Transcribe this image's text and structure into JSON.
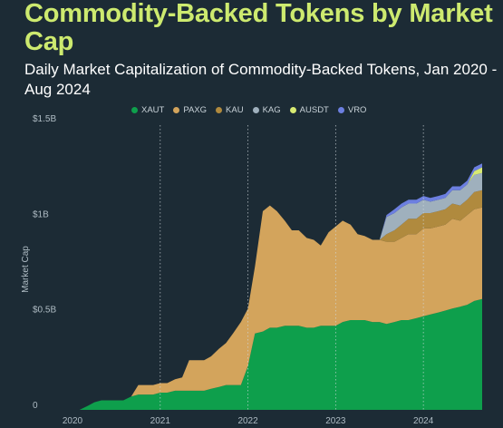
{
  "title": "Commodity-Backed Tokens by Market Cap",
  "subtitle": "Daily Market Capitalization of Commodity-Backed Tokens, Jan 2020 - Aug 2024",
  "chart_data": {
    "type": "area",
    "stacked": true,
    "title": "Commodity-Backed Tokens by Market Cap",
    "subtitle": "Daily Market Capitalization of Commodity-Backed Tokens, Jan 2020 - Aug 2024",
    "xlabel": "",
    "ylabel": "Market Cap",
    "x_ticks": [
      "2020",
      "2021",
      "2022",
      "2023",
      "2024"
    ],
    "y_ticks": [
      "0",
      "$0.5B",
      "$1B",
      "$1.5B"
    ],
    "ylim": [
      0,
      1.5
    ],
    "y_unit": "billion USD",
    "xlim": [
      2020.0,
      2024.67
    ],
    "grid": "vertical year lines (dotted)",
    "legend_position": "top",
    "colors": {
      "XAUT": "#0e9f4c",
      "PAXG": "#d3a45c",
      "KAU": "#b08a3e",
      "KAG": "#9fb0bd",
      "AUSDT": "#d8ea72",
      "VRO": "#6c7fe0"
    },
    "x": [
      2020.0,
      2020.08,
      2020.17,
      2020.25,
      2020.33,
      2020.42,
      2020.5,
      2020.58,
      2020.67,
      2020.75,
      2020.83,
      2020.92,
      2021.0,
      2021.08,
      2021.17,
      2021.25,
      2021.33,
      2021.42,
      2021.5,
      2021.58,
      2021.67,
      2021.75,
      2021.83,
      2021.92,
      2022.0,
      2022.08,
      2022.17,
      2022.25,
      2022.33,
      2022.42,
      2022.5,
      2022.58,
      2022.67,
      2022.75,
      2022.83,
      2022.92,
      2023.0,
      2023.08,
      2023.17,
      2023.25,
      2023.33,
      2023.42,
      2023.5,
      2023.58,
      2023.67,
      2023.75,
      2023.83,
      2023.92,
      2024.0,
      2024.08,
      2024.17,
      2024.25,
      2024.33,
      2024.42,
      2024.5,
      2024.58,
      2024.67
    ],
    "series": [
      {
        "name": "XAUT",
        "values": [
          0.0,
          0.0,
          0.02,
          0.04,
          0.05,
          0.05,
          0.05,
          0.05,
          0.07,
          0.08,
          0.08,
          0.08,
          0.09,
          0.09,
          0.1,
          0.1,
          0.1,
          0.1,
          0.1,
          0.11,
          0.12,
          0.13,
          0.13,
          0.13,
          0.23,
          0.4,
          0.41,
          0.43,
          0.43,
          0.44,
          0.44,
          0.44,
          0.43,
          0.43,
          0.44,
          0.44,
          0.44,
          0.46,
          0.47,
          0.47,
          0.47,
          0.46,
          0.46,
          0.45,
          0.46,
          0.47,
          0.47,
          0.48,
          0.49,
          0.5,
          0.51,
          0.52,
          0.53,
          0.54,
          0.55,
          0.57,
          0.58
        ]
      },
      {
        "name": "PAXG",
        "values": [
          0.0,
          0.0,
          0.0,
          0.0,
          0.0,
          0.0,
          0.0,
          0.0,
          0.0,
          0.05,
          0.05,
          0.05,
          0.05,
          0.05,
          0.06,
          0.07,
          0.16,
          0.16,
          0.16,
          0.17,
          0.2,
          0.22,
          0.27,
          0.33,
          0.3,
          0.35,
          0.63,
          0.64,
          0.61,
          0.55,
          0.5,
          0.5,
          0.47,
          0.46,
          0.42,
          0.49,
          0.52,
          0.53,
          0.5,
          0.45,
          0.44,
          0.43,
          0.43,
          0.43,
          0.42,
          0.43,
          0.45,
          0.44,
          0.46,
          0.45,
          0.45,
          0.45,
          0.47,
          0.45,
          0.47,
          0.48,
          0.48
        ]
      },
      {
        "name": "KAU",
        "values": [
          0.0,
          0.0,
          0.0,
          0.0,
          0.0,
          0.0,
          0.0,
          0.0,
          0.0,
          0.0,
          0.0,
          0.0,
          0.0,
          0.0,
          0.0,
          0.0,
          0.0,
          0.0,
          0.0,
          0.0,
          0.0,
          0.0,
          0.0,
          0.0,
          0.0,
          0.0,
          0.0,
          0.0,
          0.0,
          0.0,
          0.0,
          0.0,
          0.0,
          0.0,
          0.0,
          0.0,
          0.0,
          0.0,
          0.0,
          0.0,
          0.0,
          0.0,
          0.0,
          0.04,
          0.06,
          0.07,
          0.08,
          0.08,
          0.08,
          0.08,
          0.08,
          0.08,
          0.08,
          0.08,
          0.08,
          0.09,
          0.09
        ]
      },
      {
        "name": "KAG",
        "values": [
          0.0,
          0.0,
          0.0,
          0.0,
          0.0,
          0.0,
          0.0,
          0.0,
          0.0,
          0.0,
          0.0,
          0.0,
          0.0,
          0.0,
          0.0,
          0.0,
          0.0,
          0.0,
          0.0,
          0.0,
          0.0,
          0.0,
          0.0,
          0.0,
          0.0,
          0.0,
          0.0,
          0.0,
          0.0,
          0.0,
          0.0,
          0.0,
          0.0,
          0.0,
          0.0,
          0.0,
          0.0,
          0.0,
          0.0,
          0.0,
          0.0,
          0.0,
          0.0,
          0.09,
          0.09,
          0.09,
          0.08,
          0.08,
          0.07,
          0.06,
          0.06,
          0.06,
          0.07,
          0.08,
          0.08,
          0.09,
          0.09
        ]
      },
      {
        "name": "AUSDT",
        "values": [
          0.0,
          0.0,
          0.0,
          0.0,
          0.0,
          0.0,
          0.0,
          0.0,
          0.0,
          0.0,
          0.0,
          0.0,
          0.0,
          0.0,
          0.0,
          0.0,
          0.0,
          0.0,
          0.0,
          0.0,
          0.0,
          0.0,
          0.0,
          0.0,
          0.0,
          0.0,
          0.0,
          0.0,
          0.0,
          0.0,
          0.0,
          0.0,
          0.0,
          0.0,
          0.0,
          0.0,
          0.0,
          0.0,
          0.0,
          0.0,
          0.0,
          0.0,
          0.0,
          0.0,
          0.0,
          0.0,
          0.0,
          0.0,
          0.0,
          0.0,
          0.0,
          0.0,
          0.0,
          0.0,
          0.0,
          0.02,
          0.03
        ]
      },
      {
        "name": "VRO",
        "values": [
          0.0,
          0.0,
          0.0,
          0.0,
          0.0,
          0.0,
          0.0,
          0.0,
          0.0,
          0.0,
          0.0,
          0.0,
          0.0,
          0.0,
          0.0,
          0.0,
          0.0,
          0.0,
          0.0,
          0.0,
          0.0,
          0.0,
          0.0,
          0.0,
          0.0,
          0.0,
          0.0,
          0.0,
          0.0,
          0.0,
          0.0,
          0.0,
          0.0,
          0.0,
          0.0,
          0.0,
          0.0,
          0.0,
          0.0,
          0.0,
          0.0,
          0.0,
          0.0,
          0.01,
          0.02,
          0.02,
          0.02,
          0.02,
          0.02,
          0.02,
          0.02,
          0.02,
          0.02,
          0.02,
          0.02,
          0.02,
          0.02
        ]
      }
    ]
  }
}
